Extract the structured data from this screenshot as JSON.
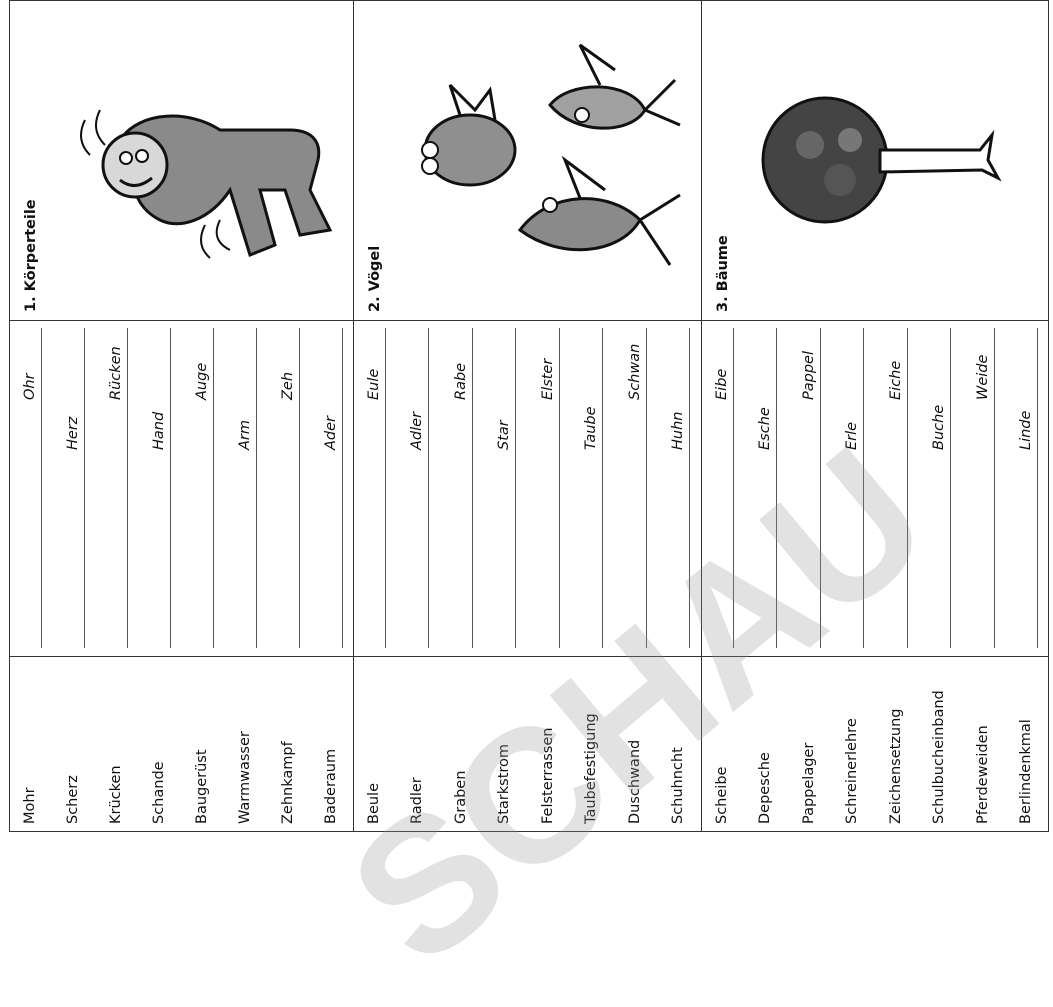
{
  "sections": [
    {
      "title": "1. Körperteile",
      "picture": "cartoon-person-icon",
      "words": [
        "Mohr",
        "Scherz",
        "Krücken",
        "Schande",
        "Baugerüst",
        "Warmwasser",
        "Zehnkampf",
        "Baderaum"
      ],
      "answers": [
        "Ohr",
        "Herz",
        "Rücken",
        "Hand",
        "Auge",
        "Arm",
        "Zeh",
        "Ader"
      ]
    },
    {
      "title": "2. Vögel",
      "picture": "cartoon-birds-icon",
      "words": [
        "Beule",
        "Radler",
        "Graben",
        "Starkstrom",
        "Felsterrassen",
        "Taubefestigung",
        "Duschwand",
        "Schuhncht"
      ],
      "answers": [
        "Eule",
        "Adler",
        "Rabe",
        "Star",
        "Elster",
        "Taube",
        "Schwan",
        "Huhn"
      ]
    },
    {
      "title": "3. Bäume",
      "picture": "tree-icon",
      "words": [
        "Scheibe",
        "Depesche",
        "Pappelager",
        "Schreinerlehre",
        "Zeichensetzung",
        "Schulbucheinband",
        "Pferdeweiden",
        "Berlindenkmal"
      ],
      "answers": [
        "Eibe",
        "Esche",
        "Pappel",
        "Erle",
        "Eiche",
        "Buche",
        "Weide",
        "Linde"
      ]
    }
  ],
  "watermark": "SCHAU",
  "colors": {
    "line": "#333333",
    "watermark": "#969696"
  }
}
